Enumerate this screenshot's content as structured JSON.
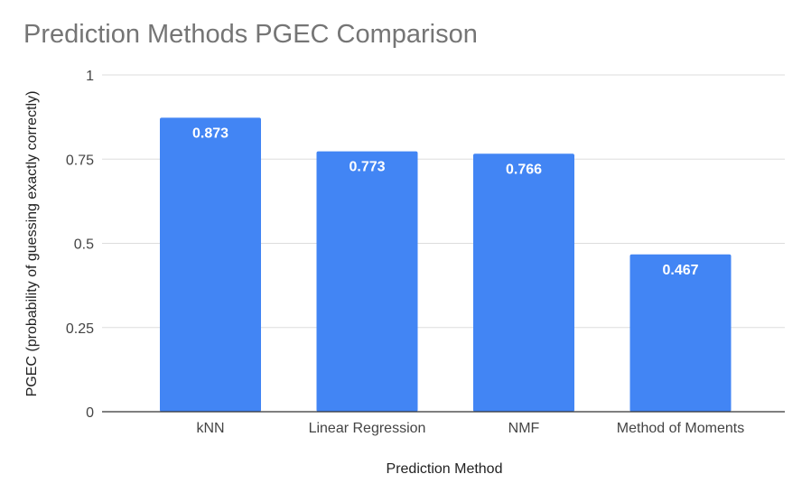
{
  "chart_data": {
    "type": "bar",
    "title": "Prediction Methods PGEC Comparison",
    "xlabel": "Prediction Method",
    "ylabel": "PGEC (probability of guessing exactly correctly)",
    "categories": [
      "kNN",
      "Linear Regression",
      "NMF",
      "Method of Moments"
    ],
    "values": [
      0.873,
      0.773,
      0.766,
      0.467
    ],
    "data_labels": [
      "0.873",
      "0.773",
      "0.766",
      "0.467"
    ],
    "ylim": [
      0,
      1
    ],
    "yticks": [
      0,
      0.25,
      0.5,
      0.75,
      1
    ],
    "ytick_labels": [
      "0",
      "0.25",
      "0.5",
      "0.75",
      "1"
    ],
    "grid": true,
    "legend": "none",
    "colors": {
      "bar": "#4285f4",
      "grid": "#dddddd",
      "baseline": "#333333",
      "title": "#757575"
    }
  }
}
